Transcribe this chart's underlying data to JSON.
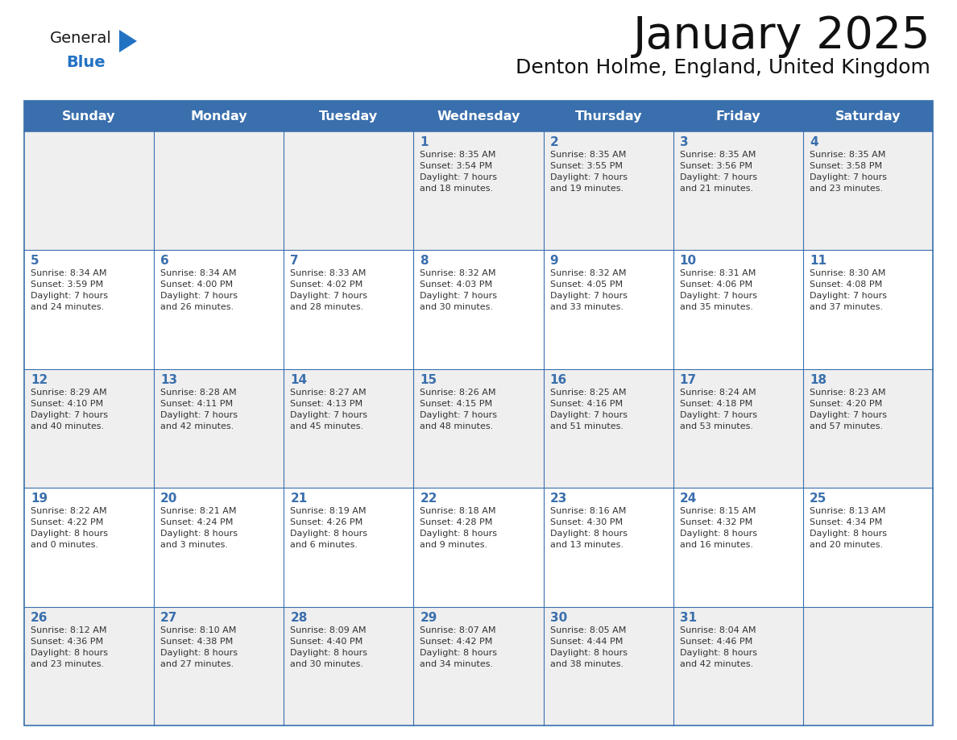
{
  "title": "January 2025",
  "subtitle": "Denton Holme, England, United Kingdom",
  "days_of_week": [
    "Sunday",
    "Monday",
    "Tuesday",
    "Wednesday",
    "Thursday",
    "Friday",
    "Saturday"
  ],
  "header_bg": "#3a6fad",
  "header_text": "#FFFFFF",
  "cell_bg_odd": "#efefef",
  "cell_bg_even": "#ffffff",
  "border_color": "#3a6fad",
  "day_number_color": "#3a6fad",
  "text_color": "#333333",
  "title_color": "#111111",
  "subtitle_color": "#111111",
  "num_cols": 7,
  "calendar": [
    [
      {
        "day": "",
        "info": ""
      },
      {
        "day": "",
        "info": ""
      },
      {
        "day": "",
        "info": ""
      },
      {
        "day": "1",
        "info": "Sunrise: 8:35 AM\nSunset: 3:54 PM\nDaylight: 7 hours\nand 18 minutes."
      },
      {
        "day": "2",
        "info": "Sunrise: 8:35 AM\nSunset: 3:55 PM\nDaylight: 7 hours\nand 19 minutes."
      },
      {
        "day": "3",
        "info": "Sunrise: 8:35 AM\nSunset: 3:56 PM\nDaylight: 7 hours\nand 21 minutes."
      },
      {
        "day": "4",
        "info": "Sunrise: 8:35 AM\nSunset: 3:58 PM\nDaylight: 7 hours\nand 23 minutes."
      }
    ],
    [
      {
        "day": "5",
        "info": "Sunrise: 8:34 AM\nSunset: 3:59 PM\nDaylight: 7 hours\nand 24 minutes."
      },
      {
        "day": "6",
        "info": "Sunrise: 8:34 AM\nSunset: 4:00 PM\nDaylight: 7 hours\nand 26 minutes."
      },
      {
        "day": "7",
        "info": "Sunrise: 8:33 AM\nSunset: 4:02 PM\nDaylight: 7 hours\nand 28 minutes."
      },
      {
        "day": "8",
        "info": "Sunrise: 8:32 AM\nSunset: 4:03 PM\nDaylight: 7 hours\nand 30 minutes."
      },
      {
        "day": "9",
        "info": "Sunrise: 8:32 AM\nSunset: 4:05 PM\nDaylight: 7 hours\nand 33 minutes."
      },
      {
        "day": "10",
        "info": "Sunrise: 8:31 AM\nSunset: 4:06 PM\nDaylight: 7 hours\nand 35 minutes."
      },
      {
        "day": "11",
        "info": "Sunrise: 8:30 AM\nSunset: 4:08 PM\nDaylight: 7 hours\nand 37 minutes."
      }
    ],
    [
      {
        "day": "12",
        "info": "Sunrise: 8:29 AM\nSunset: 4:10 PM\nDaylight: 7 hours\nand 40 minutes."
      },
      {
        "day": "13",
        "info": "Sunrise: 8:28 AM\nSunset: 4:11 PM\nDaylight: 7 hours\nand 42 minutes."
      },
      {
        "day": "14",
        "info": "Sunrise: 8:27 AM\nSunset: 4:13 PM\nDaylight: 7 hours\nand 45 minutes."
      },
      {
        "day": "15",
        "info": "Sunrise: 8:26 AM\nSunset: 4:15 PM\nDaylight: 7 hours\nand 48 minutes."
      },
      {
        "day": "16",
        "info": "Sunrise: 8:25 AM\nSunset: 4:16 PM\nDaylight: 7 hours\nand 51 minutes."
      },
      {
        "day": "17",
        "info": "Sunrise: 8:24 AM\nSunset: 4:18 PM\nDaylight: 7 hours\nand 53 minutes."
      },
      {
        "day": "18",
        "info": "Sunrise: 8:23 AM\nSunset: 4:20 PM\nDaylight: 7 hours\nand 57 minutes."
      }
    ],
    [
      {
        "day": "19",
        "info": "Sunrise: 8:22 AM\nSunset: 4:22 PM\nDaylight: 8 hours\nand 0 minutes."
      },
      {
        "day": "20",
        "info": "Sunrise: 8:21 AM\nSunset: 4:24 PM\nDaylight: 8 hours\nand 3 minutes."
      },
      {
        "day": "21",
        "info": "Sunrise: 8:19 AM\nSunset: 4:26 PM\nDaylight: 8 hours\nand 6 minutes."
      },
      {
        "day": "22",
        "info": "Sunrise: 8:18 AM\nSunset: 4:28 PM\nDaylight: 8 hours\nand 9 minutes."
      },
      {
        "day": "23",
        "info": "Sunrise: 8:16 AM\nSunset: 4:30 PM\nDaylight: 8 hours\nand 13 minutes."
      },
      {
        "day": "24",
        "info": "Sunrise: 8:15 AM\nSunset: 4:32 PM\nDaylight: 8 hours\nand 16 minutes."
      },
      {
        "day": "25",
        "info": "Sunrise: 8:13 AM\nSunset: 4:34 PM\nDaylight: 8 hours\nand 20 minutes."
      }
    ],
    [
      {
        "day": "26",
        "info": "Sunrise: 8:12 AM\nSunset: 4:36 PM\nDaylight: 8 hours\nand 23 minutes."
      },
      {
        "day": "27",
        "info": "Sunrise: 8:10 AM\nSunset: 4:38 PM\nDaylight: 8 hours\nand 27 minutes."
      },
      {
        "day": "28",
        "info": "Sunrise: 8:09 AM\nSunset: 4:40 PM\nDaylight: 8 hours\nand 30 minutes."
      },
      {
        "day": "29",
        "info": "Sunrise: 8:07 AM\nSunset: 4:42 PM\nDaylight: 8 hours\nand 34 minutes."
      },
      {
        "day": "30",
        "info": "Sunrise: 8:05 AM\nSunset: 4:44 PM\nDaylight: 8 hours\nand 38 minutes."
      },
      {
        "day": "31",
        "info": "Sunrise: 8:04 AM\nSunset: 4:46 PM\nDaylight: 8 hours\nand 42 minutes."
      },
      {
        "day": "",
        "info": ""
      }
    ]
  ],
  "logo_text_general": "General",
  "logo_text_blue": "Blue",
  "logo_color_general": "#1a1a1a",
  "logo_color_blue": "#2272c3",
  "logo_triangle_color": "#2272c3"
}
